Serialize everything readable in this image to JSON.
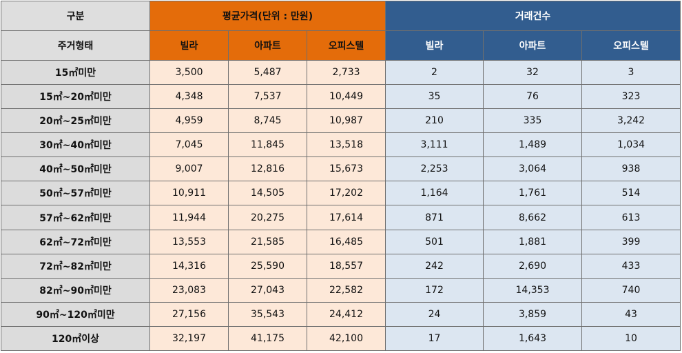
{
  "headers": {
    "category": "구분",
    "price_group": "평균가격(단위 : 만원)",
    "count_group": "거래건수",
    "housing_type": "주거형태",
    "price_cols": [
      "빌라",
      "아파트",
      "오피스텔"
    ],
    "count_cols": [
      "빌라",
      "아파트",
      "오피스텔"
    ]
  },
  "rows": [
    {
      "label": "15㎡미만",
      "price": [
        "3,500",
        "5,487",
        "2,733"
      ],
      "count": [
        "2",
        "32",
        "3"
      ]
    },
    {
      "label": "15㎡~20㎡미만",
      "price": [
        "4,348",
        "7,537",
        "10,449"
      ],
      "count": [
        "35",
        "76",
        "323"
      ]
    },
    {
      "label": "20㎡~25㎡미만",
      "price": [
        "4,959",
        "8,745",
        "10,987"
      ],
      "count": [
        "210",
        "335",
        "3,242"
      ]
    },
    {
      "label": "30㎡~40㎡미만",
      "price": [
        "7,045",
        "11,845",
        "13,518"
      ],
      "count": [
        "3,111",
        "1,489",
        "1,034"
      ]
    },
    {
      "label": "40㎡~50㎡미만",
      "price": [
        "9,007",
        "12,816",
        "15,673"
      ],
      "count": [
        "2,253",
        "3,064",
        "938"
      ]
    },
    {
      "label": "50㎡~57㎡미만",
      "price": [
        "10,911",
        "14,505",
        "17,202"
      ],
      "count": [
        "1,164",
        "1,761",
        "514"
      ]
    },
    {
      "label": "57㎡~62㎡미만",
      "price": [
        "11,944",
        "20,275",
        "17,614"
      ],
      "count": [
        "871",
        "8,662",
        "613"
      ]
    },
    {
      "label": "62㎡~72㎡미만",
      "price": [
        "13,553",
        "21,585",
        "16,485"
      ],
      "count": [
        "501",
        "1,881",
        "399"
      ]
    },
    {
      "label": "72㎡~82㎡미만",
      "price": [
        "14,316",
        "25,590",
        "18,557"
      ],
      "count": [
        "242",
        "2,690",
        "433"
      ]
    },
    {
      "label": "82㎡~90㎡미만",
      "price": [
        "23,083",
        "27,043",
        "22,582"
      ],
      "count": [
        "172",
        "14,353",
        "740"
      ]
    },
    {
      "label": "90㎡~120㎡미만",
      "price": [
        "27,156",
        "35,543",
        "24,412"
      ],
      "count": [
        "24",
        "3,859",
        "43"
      ]
    },
    {
      "label": "120㎡이상",
      "price": [
        "32,197",
        "41,175",
        "42,100"
      ],
      "count": [
        "17",
        "1,643",
        "10"
      ]
    }
  ],
  "colors": {
    "price_header": "#e46c0a",
    "count_header": "#325d8f",
    "price_cell": "#fde8d8",
    "count_cell": "#dce6f1",
    "label_cell": "#dcdcdc"
  }
}
